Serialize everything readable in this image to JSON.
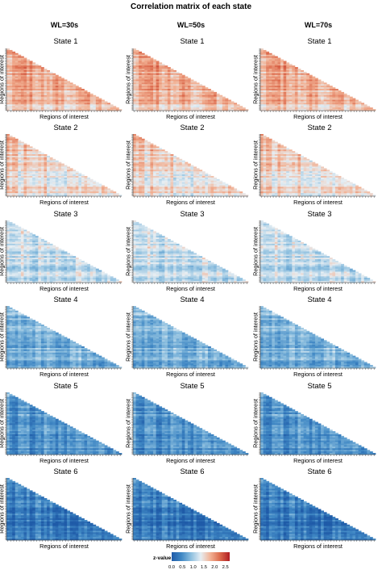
{
  "chart_data": {
    "type": "heatmap",
    "title": "Correlation matrix of each state",
    "columns": [
      "WL=30s",
      "WL=50s",
      "WL=70s"
    ],
    "rows": [
      "State 1",
      "State 2",
      "State 3",
      "State 4",
      "State 5",
      "State 6"
    ],
    "panel_xlabel": "Regions of interest",
    "panel_ylabel": "Regions of interest",
    "matrix_shape": "lower-triangle",
    "roi_count": 40,
    "state_mean_z": [
      1.7,
      1.45,
      1.1,
      0.75,
      0.45,
      0.25
    ],
    "color_scale": {
      "title": "z-value",
      "range": [
        0.0,
        2.7
      ],
      "ticks": [
        "0.0",
        "0.5",
        "1.0",
        "1.5",
        "2.0",
        "2.5"
      ],
      "tick_values": [
        0.0,
        0.5,
        1.0,
        1.5,
        2.0,
        2.5
      ],
      "colors": [
        "#1f5ba8",
        "#3f87c4",
        "#8dbfdf",
        "#e6eef3",
        "#f2b295",
        "#dc6a4c",
        "#b01c22"
      ],
      "position": "bottom"
    }
  }
}
